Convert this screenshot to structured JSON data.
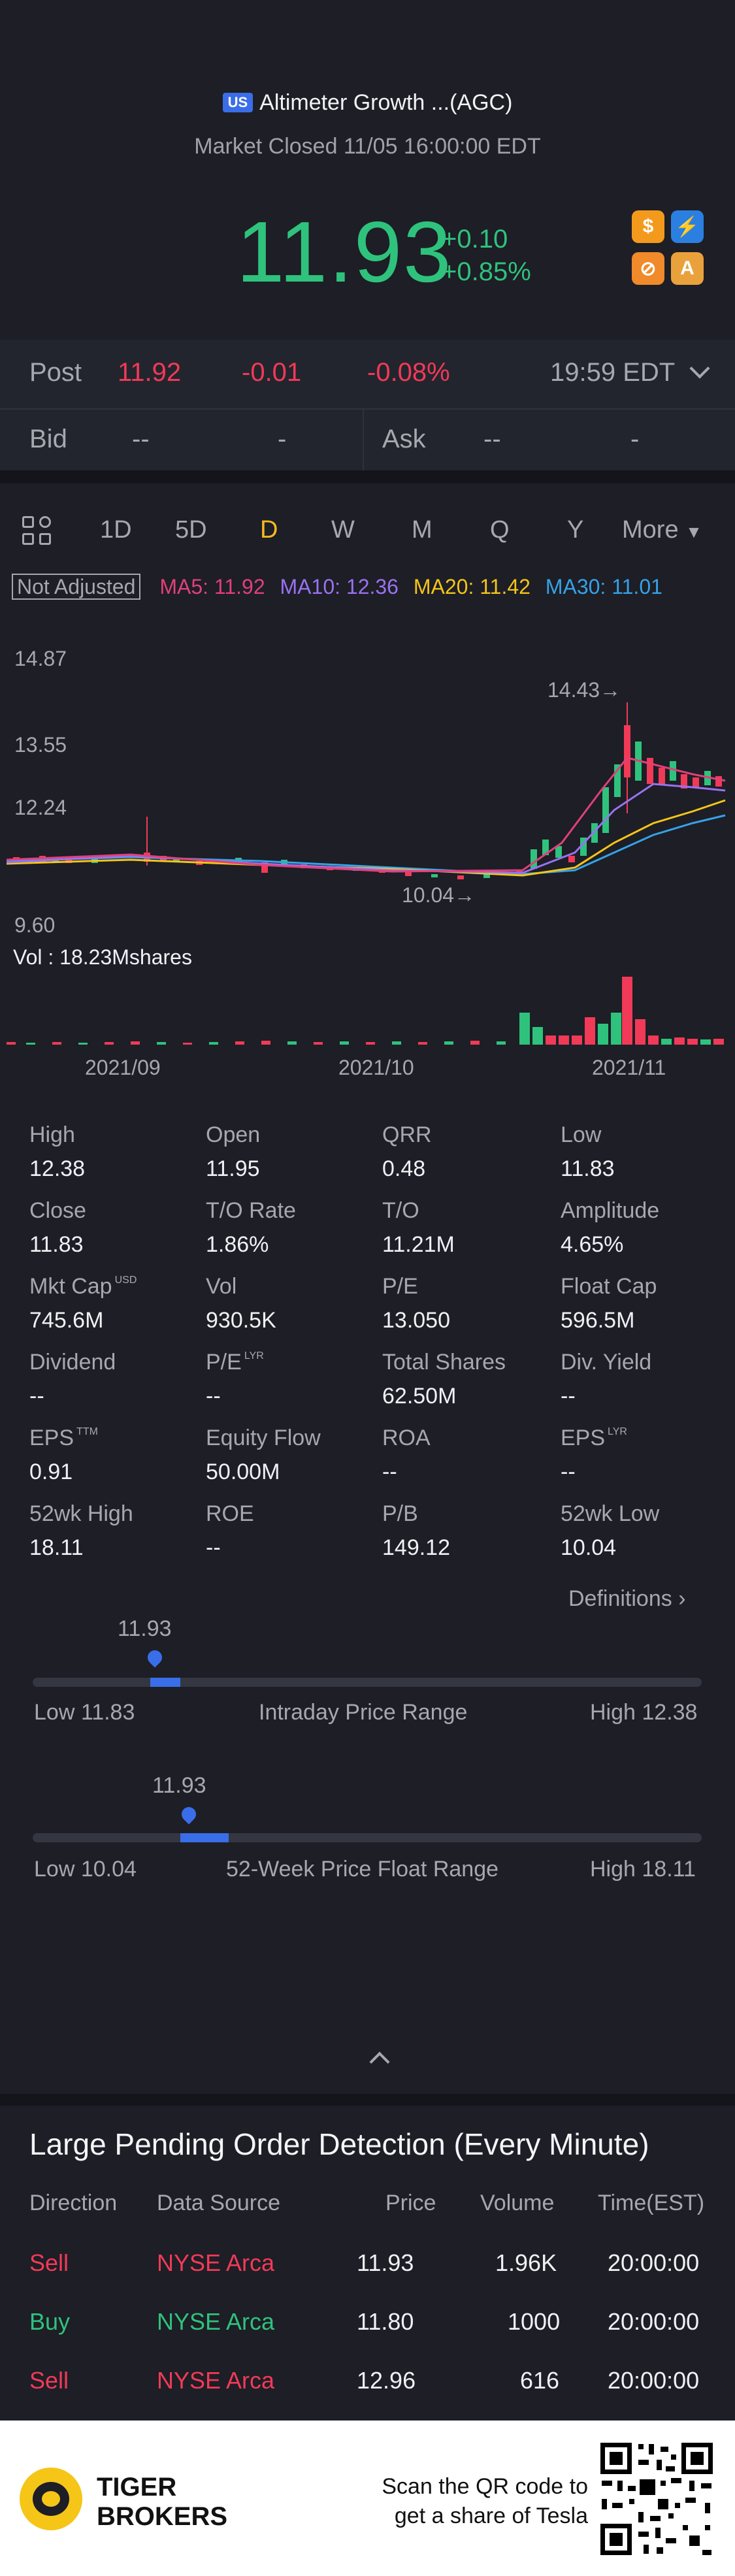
{
  "header": {
    "market_badge": "US",
    "name": "Altimeter Growth ...(AGC)",
    "status": "Market Closed 11/05 16:00:00 EDT"
  },
  "quote": {
    "price": "11.93",
    "change": "+0.10",
    "change_pct": "+0.85%",
    "badges": [
      {
        "icon": "dollar-icon",
        "text": "$",
        "color": "#f39a1c"
      },
      {
        "icon": "flash-icon",
        "text": "⚡",
        "color": "#2b7fe0"
      },
      {
        "icon": "no-short-icon",
        "text": "⊘",
        "color": "#f08a2a"
      },
      {
        "icon": "hat-icon",
        "text": "A",
        "color": "#e9a23b"
      }
    ]
  },
  "post": {
    "label": "Post",
    "price": "11.92",
    "change": "-0.01",
    "change_pct": "-0.08%",
    "time": "19:59 EDT"
  },
  "bidask": {
    "bid_label": "Bid",
    "bid_price": "--",
    "bid_size": "-",
    "ask_label": "Ask",
    "ask_price": "--",
    "ask_size": "-"
  },
  "periods": [
    "1D",
    "5D",
    "D",
    "W",
    "M",
    "Q",
    "Y"
  ],
  "active_period": "D",
  "more_label": "More",
  "ma": {
    "not_adjusted": "Not Adjusted",
    "ma5": "MA5: 11.92",
    "ma10": "MA10: 12.36",
    "ma20": "MA20: 11.42",
    "ma30": "MA30: 11.01",
    "colors": {
      "ma5": "#e0407a",
      "ma10": "#9a72f0",
      "ma20": "#f5c518",
      "ma30": "#36a2e8"
    }
  },
  "chart": {
    "y_labels": [
      "14.87",
      "13.55",
      "12.24",
      "9.60"
    ],
    "high_marker": "14.43",
    "low_marker": "10.04",
    "vol_label": "Vol : 18.23Mshares",
    "x_labels": [
      "2021/09",
      "2021/10",
      "2021/11"
    ]
  },
  "stats": [
    {
      "label": "High",
      "value": "12.38"
    },
    {
      "label": "Open",
      "value": "11.95"
    },
    {
      "label": "QRR",
      "value": "0.48"
    },
    {
      "label": "Low",
      "value": "11.83"
    },
    {
      "label": "Close",
      "value": "11.83"
    },
    {
      "label": "T/O Rate",
      "value": "1.86%"
    },
    {
      "label": "T/O",
      "value": "11.21M"
    },
    {
      "label": "Amplitude",
      "value": "4.65%"
    },
    {
      "label": "Mkt Cap",
      "value": "745.6M",
      "sup": "USD"
    },
    {
      "label": "Vol",
      "value": "930.5K"
    },
    {
      "label": "P/E",
      "value": "13.050"
    },
    {
      "label": "Float Cap",
      "value": "596.5M"
    },
    {
      "label": "Dividend",
      "value": "--"
    },
    {
      "label": "P/E",
      "value": "--",
      "sup": "LYR"
    },
    {
      "label": "Total Shares",
      "value": "62.50M"
    },
    {
      "label": "Div. Yield",
      "value": "--"
    },
    {
      "label": "EPS",
      "value": "0.91",
      "sup": "TTM"
    },
    {
      "label": "Equity Flow",
      "value": "50.00M"
    },
    {
      "label": "ROA",
      "value": "--"
    },
    {
      "label": "EPS",
      "value": "--",
      "sup": "LYR"
    },
    {
      "label": "52wk High",
      "value": "18.11"
    },
    {
      "label": "ROE",
      "value": "--"
    },
    {
      "label": "P/B",
      "value": "149.12"
    },
    {
      "label": "52wk Low",
      "value": "10.04"
    }
  ],
  "definitions_label": "Definitions",
  "intraday": {
    "current": "11.93",
    "low": "Low 11.83",
    "title": "Intraday Price Range",
    "high": "High 12.38",
    "position": 0.18
  },
  "week52": {
    "current": "11.93",
    "low": "Low 10.04",
    "title": "52-Week Price Float Range",
    "high": "High 18.11",
    "position": 0.23
  },
  "orders": {
    "title": "Large Pending Order Detection (Every Minute)",
    "headers": [
      "Direction",
      "Data Source",
      "Price",
      "Volume",
      "Time(EST)"
    ],
    "rows": [
      {
        "direction": "Sell",
        "source": "NYSE Arca",
        "price": "11.93",
        "volume": "1.96K",
        "time": "20:00:00"
      },
      {
        "direction": "Buy",
        "source": "NYSE Arca",
        "price": "11.80",
        "volume": "1000",
        "time": "20:00:00"
      },
      {
        "direction": "Sell",
        "source": "NYSE Arca",
        "price": "12.96",
        "volume": "616",
        "time": "20:00:00"
      }
    ]
  },
  "footer": {
    "brand_line1": "TIGER",
    "brand_line2": "BROKERS",
    "scan_line1": "Scan the QR code to",
    "scan_line2": "get a share of Tesla"
  }
}
